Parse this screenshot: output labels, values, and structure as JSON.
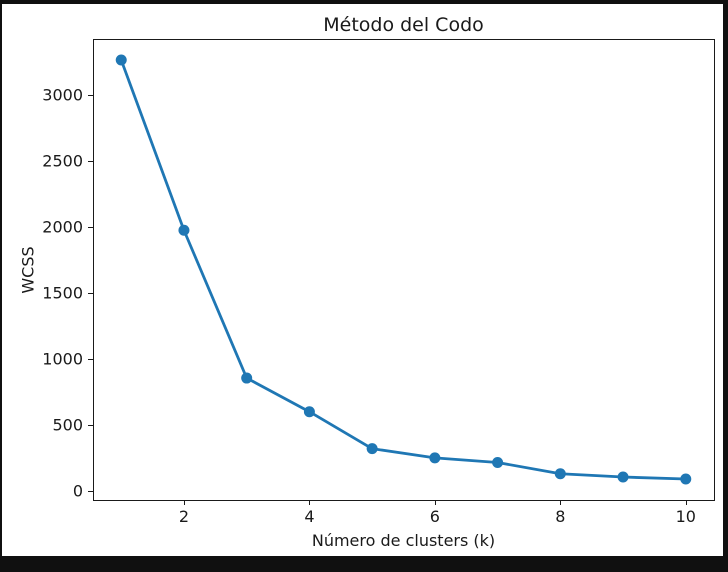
{
  "chart_data": {
    "type": "line",
    "title": "Método del Codo",
    "xlabel": "Número de clusters (k)",
    "ylabel": "WCSS",
    "x": [
      1,
      2,
      3,
      4,
      5,
      6,
      7,
      8,
      9,
      10
    ],
    "series": [
      {
        "name": "WCSS",
        "values": [
          3265,
          1975,
          855,
          600,
          320,
          250,
          215,
          130,
          105,
          90
        ]
      }
    ],
    "xticks": [
      2,
      4,
      6,
      8,
      10
    ],
    "yticks": [
      0,
      500,
      1000,
      1500,
      2000,
      2500,
      3000
    ],
    "xlim": [
      0.55,
      10.45
    ],
    "ylim": [
      -69,
      3424
    ],
    "grid": false,
    "legend": "none",
    "line_color": "#1f77b4",
    "marker": "circle",
    "axis_color": "#1a1a1a",
    "background_color": "#ffffff",
    "frame_color": "#101010"
  }
}
